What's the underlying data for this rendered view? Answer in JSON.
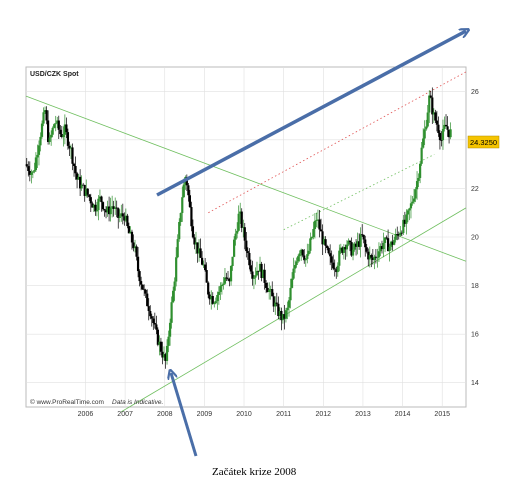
{
  "chart_data": {
    "type": "candlestick",
    "title": "USD/CZK Spot",
    "price_tag": "24.3250",
    "footer_source": "© www.ProRealTime.com",
    "footer_note": "Data is Indicative.",
    "annotation": "Začátek krize 2008",
    "x_ticks": [
      "2006",
      "2007",
      "2008",
      "2009",
      "2010",
      "2011",
      "2012",
      "2013",
      "2014",
      "2015"
    ],
    "y_ticks": [
      "14",
      "16",
      "18",
      "20",
      "22",
      "24",
      "26"
    ],
    "ylim": [
      13,
      27
    ],
    "xlim": [
      2005.0,
      2016.1
    ],
    "grid": true,
    "price_path": [
      [
        2005.0,
        23.0
      ],
      [
        2005.2,
        22.6
      ],
      [
        2005.35,
        24.0
      ],
      [
        2005.5,
        25.2
      ],
      [
        2005.6,
        23.8
      ],
      [
        2005.75,
        24.8
      ],
      [
        2005.9,
        24.2
      ],
      [
        2006.0,
        24.4
      ],
      [
        2006.15,
        23.6
      ],
      [
        2006.3,
        22.4
      ],
      [
        2006.45,
        22.0
      ],
      [
        2006.6,
        21.7
      ],
      [
        2006.75,
        21.2
      ],
      [
        2006.9,
        21.6
      ],
      [
        2007.05,
        21.0
      ],
      [
        2007.2,
        21.3
      ],
      [
        2007.35,
        20.8
      ],
      [
        2007.5,
        20.9
      ],
      [
        2007.6,
        20.2
      ],
      [
        2007.75,
        19.6
      ],
      [
        2007.85,
        18.6
      ],
      [
        2007.95,
        18.0
      ],
      [
        2008.05,
        17.4
      ],
      [
        2008.15,
        17.0
      ],
      [
        2008.3,
        16.0
      ],
      [
        2008.42,
        15.4
      ],
      [
        2008.55,
        14.8
      ],
      [
        2008.65,
        16.6
      ],
      [
        2008.75,
        18.0
      ],
      [
        2008.85,
        19.8
      ],
      [
        2008.95,
        21.6
      ],
      [
        2009.05,
        22.6
      ],
      [
        2009.15,
        21.2
      ],
      [
        2009.25,
        20.0
      ],
      [
        2009.4,
        19.2
      ],
      [
        2009.5,
        18.8
      ],
      [
        2009.6,
        17.8
      ],
      [
        2009.75,
        17.4
      ],
      [
        2009.9,
        17.8
      ],
      [
        2010.05,
        18.4
      ],
      [
        2010.15,
        18.0
      ],
      [
        2010.25,
        19.6
      ],
      [
        2010.4,
        21.0
      ],
      [
        2010.5,
        20.2
      ],
      [
        2010.6,
        19.4
      ],
      [
        2010.75,
        18.4
      ],
      [
        2010.9,
        18.8
      ],
      [
        2011.05,
        18.2
      ],
      [
        2011.2,
        17.6
      ],
      [
        2011.35,
        17.0
      ],
      [
        2011.5,
        16.6
      ],
      [
        2011.62,
        17.0
      ],
      [
        2011.75,
        18.4
      ],
      [
        2011.85,
        19.2
      ],
      [
        2011.95,
        19.6
      ],
      [
        2012.1,
        19.0
      ],
      [
        2012.2,
        19.8
      ],
      [
        2012.35,
        20.8
      ],
      [
        2012.45,
        20.2
      ],
      [
        2012.55,
        19.6
      ],
      [
        2012.7,
        19.0
      ],
      [
        2012.85,
        18.8
      ],
      [
        2012.95,
        19.4
      ],
      [
        2013.1,
        19.8
      ],
      [
        2013.25,
        19.4
      ],
      [
        2013.35,
        19.6
      ],
      [
        2013.5,
        20.0
      ],
      [
        2013.6,
        19.4
      ],
      [
        2013.75,
        19.0
      ],
      [
        2013.9,
        19.4
      ],
      [
        2014.05,
        19.8
      ],
      [
        2014.2,
        19.6
      ],
      [
        2014.35,
        20.0
      ],
      [
        2014.5,
        20.4
      ],
      [
        2014.6,
        20.6
      ],
      [
        2014.75,
        21.4
      ],
      [
        2014.9,
        22.4
      ],
      [
        2015.0,
        23.6
      ],
      [
        2015.1,
        24.6
      ],
      [
        2015.2,
        25.8
      ],
      [
        2015.3,
        25.0
      ],
      [
        2015.4,
        24.6
      ],
      [
        2015.5,
        24.0
      ],
      [
        2015.6,
        24.6
      ],
      [
        2015.7,
        24.3
      ]
    ],
    "lines": [
      {
        "name": "descending-green-trendline",
        "color": "#6fbf5f",
        "style": "solid",
        "from": [
          2005.0,
          25.8
        ],
        "to": [
          2016.1,
          19.0
        ]
      },
      {
        "name": "ascending-green-trendline",
        "color": "#6fbf5f",
        "style": "solid",
        "from": [
          2007.4,
          12.8
        ],
        "to": [
          2016.1,
          21.2
        ]
      },
      {
        "name": "red-dotted-channel-top",
        "color": "#e05050",
        "style": "dotted",
        "from": [
          2009.6,
          21.0
        ],
        "to": [
          2016.1,
          26.8
        ]
      },
      {
        "name": "green-dotted-channel",
        "color": "#6fbf5f",
        "style": "dotted",
        "from": [
          2011.5,
          20.3
        ],
        "to": [
          2015.3,
          23.4
        ]
      }
    ],
    "colors": {
      "up": "#2f8f2f",
      "down": "#000000",
      "grid": "#e0e0e0",
      "arrow": "#4a6ea8",
      "price_tag": "#f5c400"
    }
  }
}
